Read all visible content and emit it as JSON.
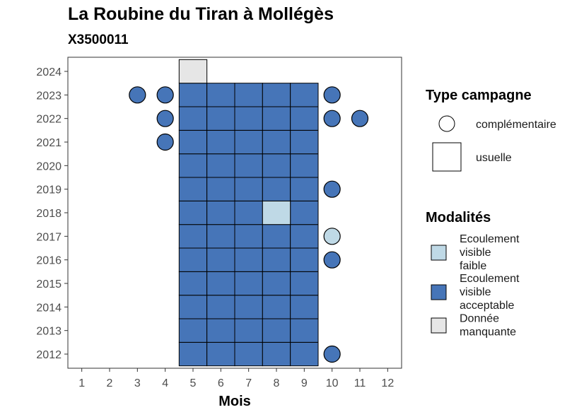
{
  "chart_data": {
    "type": "heatmap",
    "title": "La Roubine du Tiran à Mollégès",
    "subtitle": "X3500011",
    "xlabel": "Mois",
    "ylabel": "",
    "x_ticks": [
      1,
      2,
      3,
      4,
      5,
      6,
      7,
      8,
      9,
      10,
      11,
      12
    ],
    "y_ticks": [
      2012,
      2013,
      2014,
      2015,
      2016,
      2017,
      2018,
      2019,
      2020,
      2021,
      2022,
      2023,
      2024
    ],
    "xlim": [
      0.5,
      12.5
    ],
    "ylim": [
      2011.4,
      2024.6
    ],
    "grid": false,
    "legend_position": "right",
    "colors": {
      "faible": "#bfd9e6",
      "acceptable": "#4675b8",
      "manquante": "#e6e6e6"
    },
    "legend_shape": {
      "title": "Type campagne",
      "items": [
        {
          "label": "complémentaire",
          "shape": "circle"
        },
        {
          "label": "usuelle",
          "shape": "square"
        }
      ]
    },
    "legend_fill": {
      "title": "Modalités",
      "items": [
        {
          "key": "faible",
          "label": [
            "Ecoulement",
            "visible",
            "faible"
          ]
        },
        {
          "key": "acceptable",
          "label": [
            "Ecoulement",
            "visible",
            "acceptable"
          ]
        },
        {
          "key": "manquante",
          "label": [
            "Donnée",
            "manquante"
          ]
        }
      ]
    },
    "usuelle": [
      {
        "year": 2012,
        "months": [
          5,
          6,
          7,
          8,
          9
        ],
        "value": "acceptable"
      },
      {
        "year": 2013,
        "months": [
          5,
          6,
          7,
          8,
          9
        ],
        "value": "acceptable"
      },
      {
        "year": 2014,
        "months": [
          5,
          6,
          7,
          8,
          9
        ],
        "value": "acceptable"
      },
      {
        "year": 2015,
        "months": [
          5,
          6,
          7,
          8,
          9
        ],
        "value": "acceptable"
      },
      {
        "year": 2016,
        "months": [
          5,
          6,
          7,
          8,
          9
        ],
        "value": "acceptable"
      },
      {
        "year": 2017,
        "months": [
          5,
          6,
          7,
          8,
          9
        ],
        "value": "acceptable"
      },
      {
        "year": 2018,
        "months": [
          5,
          6,
          7,
          9
        ],
        "value": "acceptable"
      },
      {
        "year": 2018,
        "months": [
          8
        ],
        "value": "faible"
      },
      {
        "year": 2019,
        "months": [
          5,
          6,
          7,
          8,
          9
        ],
        "value": "acceptable"
      },
      {
        "year": 2020,
        "months": [
          5,
          6,
          7,
          8,
          9
        ],
        "value": "acceptable"
      },
      {
        "year": 2021,
        "months": [
          5,
          6,
          7,
          8,
          9
        ],
        "value": "acceptable"
      },
      {
        "year": 2022,
        "months": [
          5,
          6,
          7,
          8,
          9
        ],
        "value": "acceptable"
      },
      {
        "year": 2023,
        "months": [
          5,
          6,
          7,
          8,
          9
        ],
        "value": "acceptable"
      },
      {
        "year": 2024,
        "months": [
          5
        ],
        "value": "manquante"
      }
    ],
    "complementaire": [
      {
        "year": 2023,
        "month": 3,
        "value": "acceptable"
      },
      {
        "year": 2023,
        "month": 4,
        "value": "acceptable"
      },
      {
        "year": 2023,
        "month": 10,
        "value": "acceptable"
      },
      {
        "year": 2022,
        "month": 4,
        "value": "acceptable"
      },
      {
        "year": 2022,
        "month": 10,
        "value": "acceptable"
      },
      {
        "year": 2022,
        "month": 11,
        "value": "acceptable"
      },
      {
        "year": 2021,
        "month": 4,
        "value": "acceptable"
      },
      {
        "year": 2019,
        "month": 10,
        "value": "acceptable"
      },
      {
        "year": 2017,
        "month": 10,
        "value": "faible"
      },
      {
        "year": 2016,
        "month": 10,
        "value": "acceptable"
      },
      {
        "year": 2012,
        "month": 10,
        "value": "acceptable"
      }
    ]
  }
}
